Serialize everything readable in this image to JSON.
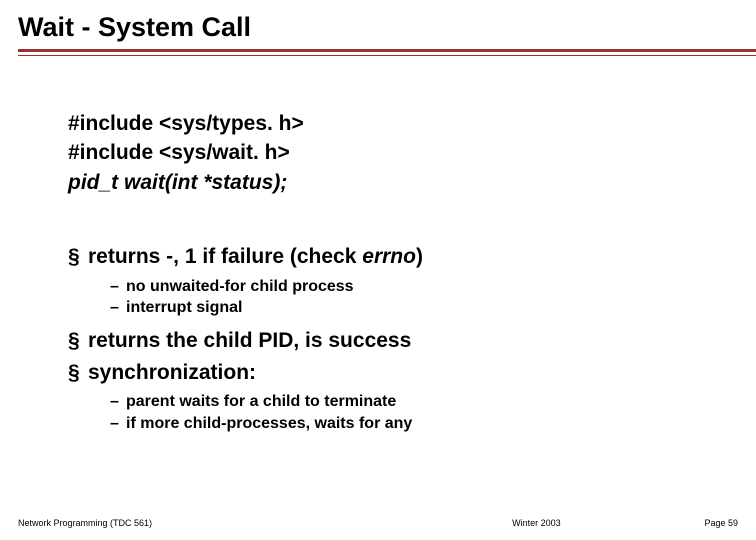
{
  "colors": {
    "title_underline": "#993333",
    "text": "#000000",
    "background": "#ffffff"
  },
  "typography": {
    "title_fontsize": 27,
    "body_fontsize": 21,
    "sub_fontsize": 16,
    "footer_fontsize": 9,
    "font_family": "Arial"
  },
  "title": "Wait - System Call",
  "code": {
    "line1": "#include <sys/types. h>",
    "line2": "#include <sys/wait. h>",
    "line3": "pid_t wait(int *status);"
  },
  "bullets": {
    "b1_prefix": "returns -, 1 if failure (check ",
    "b1_italic": "errno",
    "b1_suffix": ")",
    "b1_sub1": "no unwaited-for child process",
    "b1_sub2": "interrupt signal",
    "b2": "returns the child PID, is success",
    "b3": "synchronization:",
    "b3_sub1": "parent waits for a child to terminate",
    "b3_sub2": "if more child-processes, waits for any"
  },
  "footer": {
    "left": "Network Programming (TDC 561)",
    "center": "Winter  2003",
    "right": "Page 59"
  }
}
